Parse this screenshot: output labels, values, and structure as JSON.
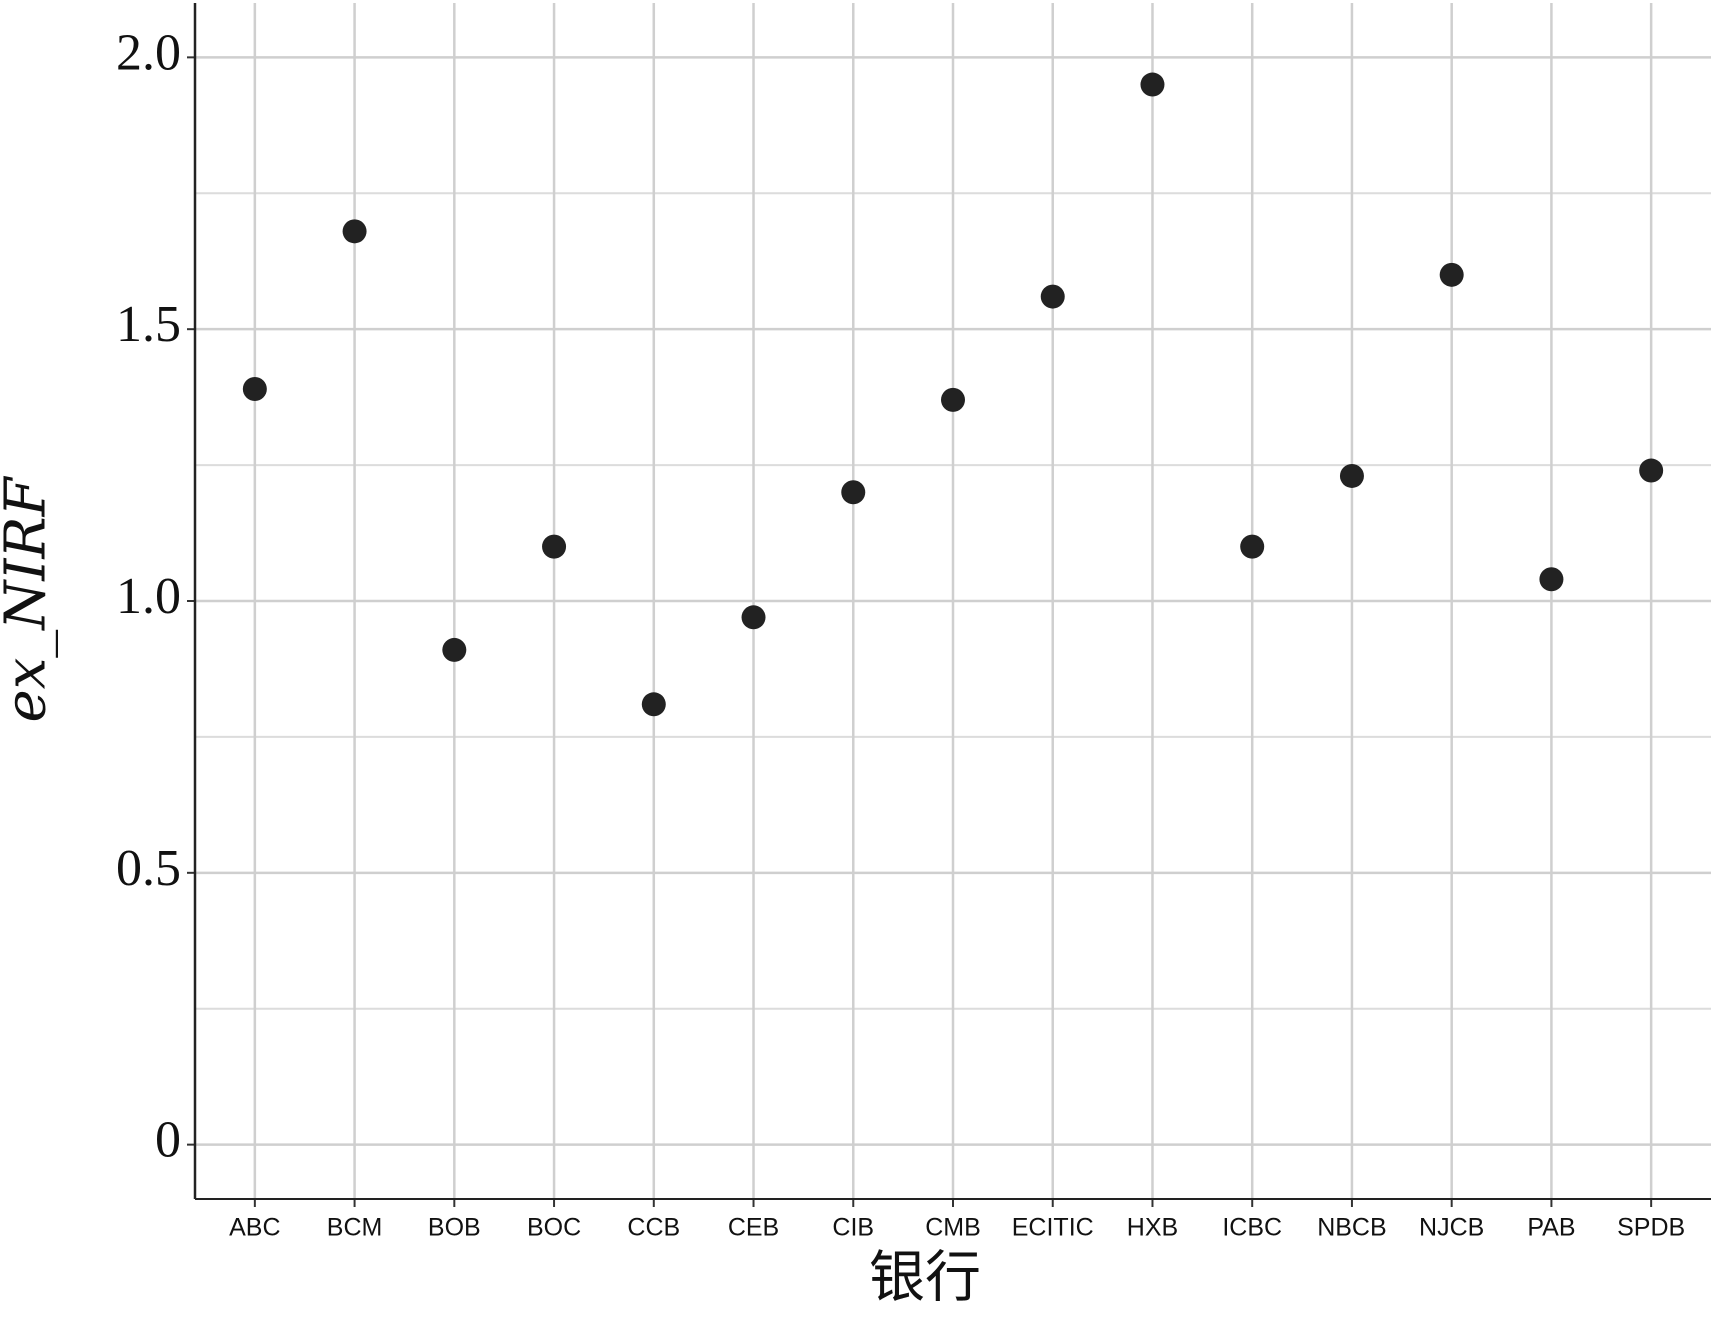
{
  "chart_data": {
    "type": "scatter",
    "x_label": "银行",
    "y_label": "ex_NIRF",
    "categories": [
      "ABC",
      "BCM",
      "BOB",
      "BOC",
      "CCB",
      "CEB",
      "CIB",
      "CMB",
      "ECITIC",
      "HXB",
      "ICBC",
      "NBCB",
      "NJCB",
      "PAB",
      "SPDB"
    ],
    "values": [
      1.39,
      1.68,
      0.91,
      1.1,
      0.81,
      0.97,
      1.2,
      1.37,
      1.56,
      1.95,
      1.1,
      1.23,
      1.6,
      1.04,
      1.24
    ],
    "color": "#222222",
    "ylim": [
      -0.1,
      2.1
    ],
    "yticks": [
      0,
      0.5,
      {
        "value": 1,
        "label": "1.0"
      },
      1.5,
      {
        "value": 2,
        "label": "2.0"
      }
    ],
    "minor_yticks": [
      0.25,
      0.75,
      1.25,
      1.75
    ],
    "grid": true
  }
}
